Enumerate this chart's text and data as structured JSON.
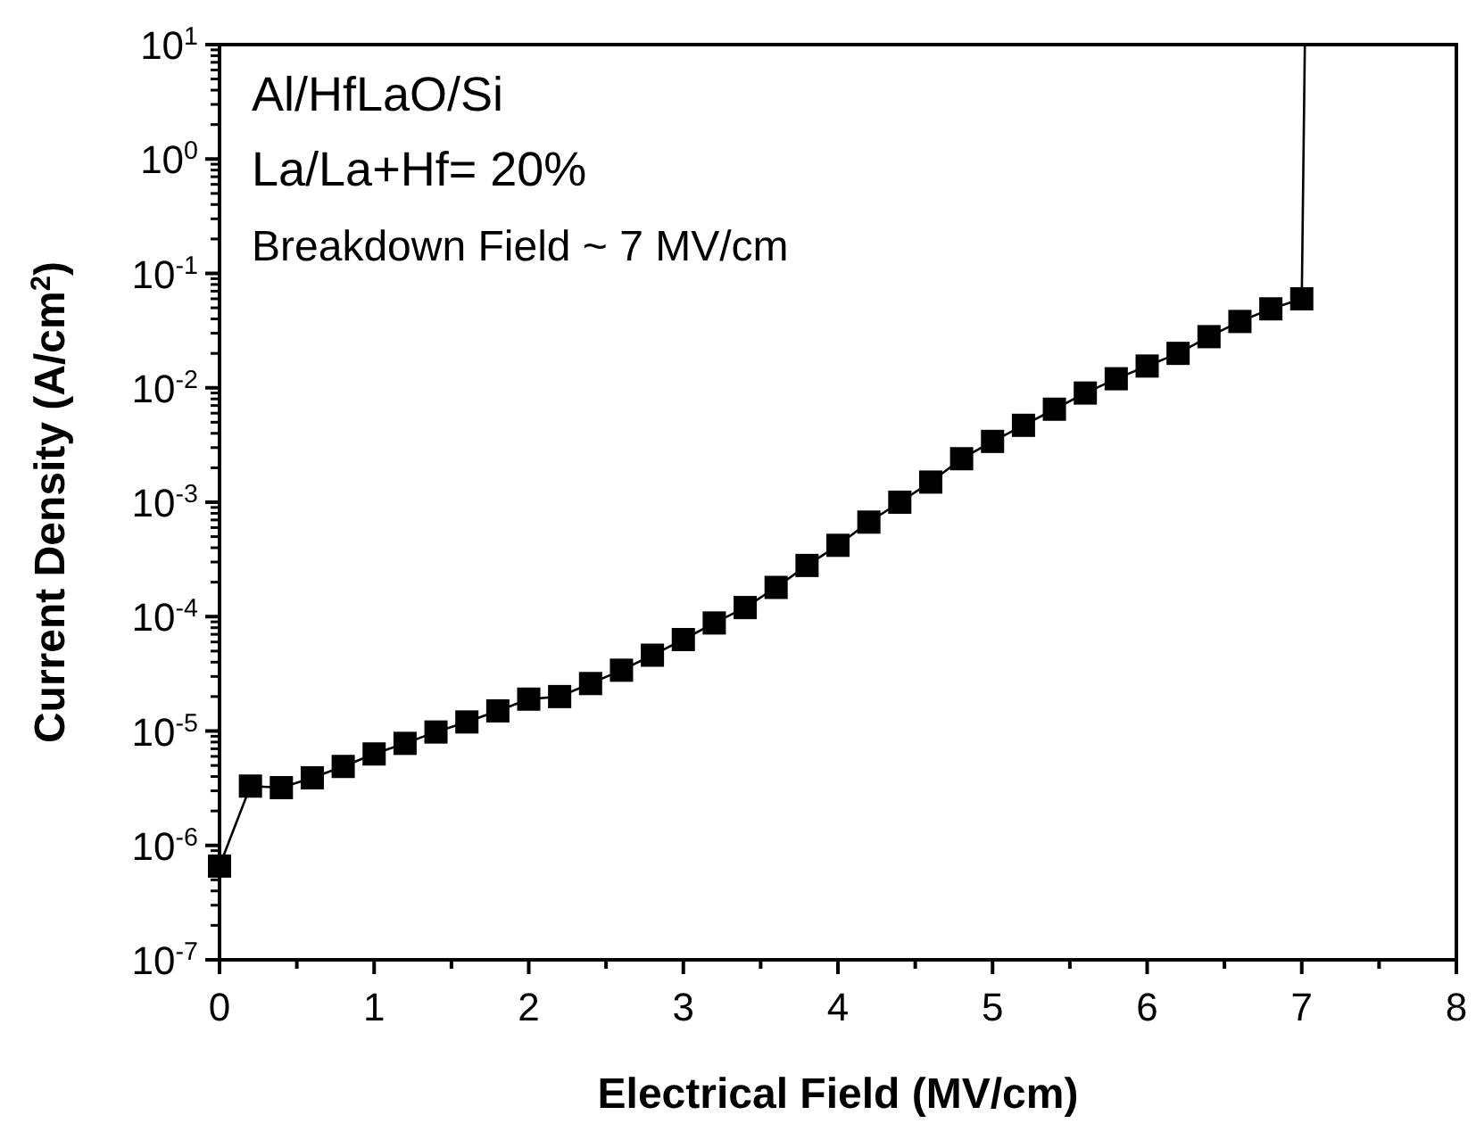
{
  "chart_data": {
    "type": "line",
    "xlabel": "Electrical Field (MV/cm)",
    "ylabel": "Current Density (A/cm$^{2}$)",
    "annotations": [
      "Al/HfLaO/Si",
      "La/La+Hf= 20%",
      "Breakdown Field ~ 7 MV/cm"
    ],
    "log": "y",
    "xlim": [
      0,
      8
    ],
    "xticks": [
      0,
      1,
      2,
      3,
      4,
      5,
      6,
      7,
      8
    ],
    "ylim": [
      1e-07,
      10
    ],
    "yticks": [
      {
        "value": 1e-07,
        "label": "10$^{-7}$"
      },
      {
        "value": 1e-06,
        "label": "10$^{-6}$"
      },
      {
        "value": 1e-05,
        "label": "10$^{-5}$"
      },
      {
        "value": 0.0001,
        "label": "10$^{-4}$"
      },
      {
        "value": 0.001,
        "label": "10$^{-3}$"
      },
      {
        "value": 0.01,
        "label": "10$^{-2}$"
      },
      {
        "value": 0.1,
        "label": "10$^{-1}$"
      },
      {
        "value": 1,
        "label": "10$^{0}$"
      },
      {
        "value": 10,
        "label": "10$^{1}$"
      }
    ],
    "grid": false,
    "series": [
      {
        "color": "#000000",
        "marker": "square",
        "x": [
          0,
          0.2,
          0.4,
          0.6,
          0.8,
          1.0,
          1.2,
          1.4,
          1.6,
          1.8,
          2.0,
          2.2,
          2.4,
          2.6,
          2.8,
          3.0,
          3.2,
          3.4,
          3.6,
          3.8,
          4.0,
          4.2,
          4.4,
          4.6,
          4.8,
          5.0,
          5.2,
          5.4,
          5.6,
          5.8,
          6.0,
          6.2,
          6.4,
          6.6,
          6.8,
          7.0
        ],
        "values": [
          6.6e-07,
          3.3e-06,
          3.2e-06,
          3.9e-06,
          4.9e-06,
          6.3e-06,
          7.8e-06,
          9.8e-06,
          1.2e-05,
          1.5e-05,
          1.9e-05,
          2e-05,
          2.6e-05,
          3.4e-05,
          4.6e-05,
          6.3e-05,
          8.8e-05,
          0.00012,
          0.00018,
          0.00028,
          0.00042,
          0.00067,
          0.001,
          0.0015,
          0.0024,
          0.0034,
          0.0047,
          0.0065,
          0.009,
          0.012,
          0.0155,
          0.02,
          0.028,
          0.038,
          0.049,
          0.06
        ]
      },
      {
        "color": "#000000",
        "marker": "none",
        "x": [
          7.0,
          7.02
        ],
        "values": [
          0.06,
          10
        ]
      }
    ]
  }
}
